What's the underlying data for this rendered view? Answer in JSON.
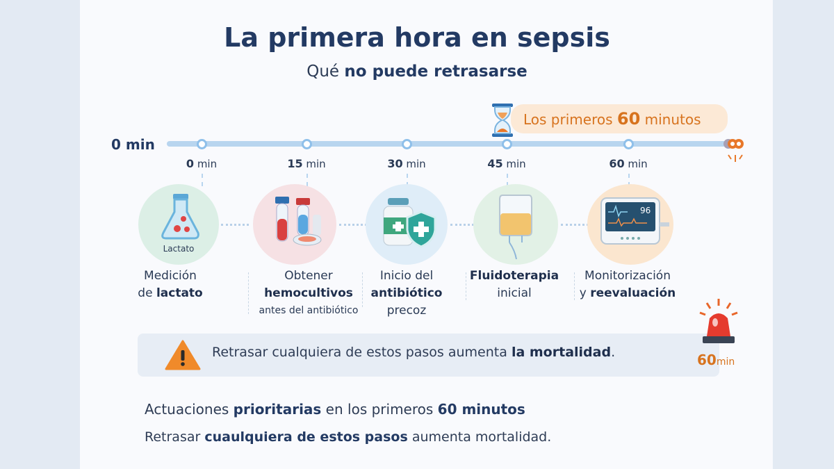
{
  "title": "La primera hora en sepsis",
  "subtitle": {
    "pre": "Qué ",
    "bold": "no puede retrasarse"
  },
  "timeline": {
    "start_label": "0 min",
    "badge": {
      "pre": "Los primeros ",
      "bold": "60",
      "post": " minutos"
    },
    "ticks": [
      {
        "num": "0",
        "unit": "min"
      },
      {
        "num": "15",
        "unit": "min"
      },
      {
        "num": "30",
        "unit": "min"
      },
      {
        "num": "45",
        "unit": "min"
      },
      {
        "num": "60",
        "unit": "min"
      }
    ]
  },
  "steps": [
    {
      "icon": "lactate-flask-icon",
      "icon_label": "Lactato",
      "l1": "Medición",
      "l2pre": "de ",
      "l2bold": "lactato"
    },
    {
      "icon": "blood-culture-tubes-icon",
      "l1": "Obtener",
      "l2bold": "hemocultivos",
      "l3": "antes del antibiótico"
    },
    {
      "icon": "antibiotic-shield-icon",
      "l1": "Inicio del",
      "l2bold": "antibiótico",
      "l3": "precoz"
    },
    {
      "icon": "iv-bag-icon",
      "l1bold": "Fluidoterapia",
      "l2": "inicial"
    },
    {
      "icon": "monitor-icon",
      "monitor_value": "96",
      "l1": "Monitorización",
      "l2pre": "y ",
      "l2bold": "reevaluación"
    }
  ],
  "warning": {
    "pre": "Retrasar cualquiera de estos pasos aumenta ",
    "bold": "la mortalidad",
    "post": "."
  },
  "alarm": {
    "num": "60",
    "unit": "min"
  },
  "footer": {
    "line1": {
      "pre": "Actuaciones ",
      "bold1": "prioritarias",
      "mid": " en los primeros ",
      "bold2": "60 minutos"
    },
    "line2": {
      "pre": "Retrasar ",
      "bold": "cuaulquiera de estos pasos",
      "post": " aumenta mortalidad."
    }
  },
  "colors": {
    "navy": "#233a63",
    "orange": "#d7731e",
    "track": "#b8d5ef"
  }
}
